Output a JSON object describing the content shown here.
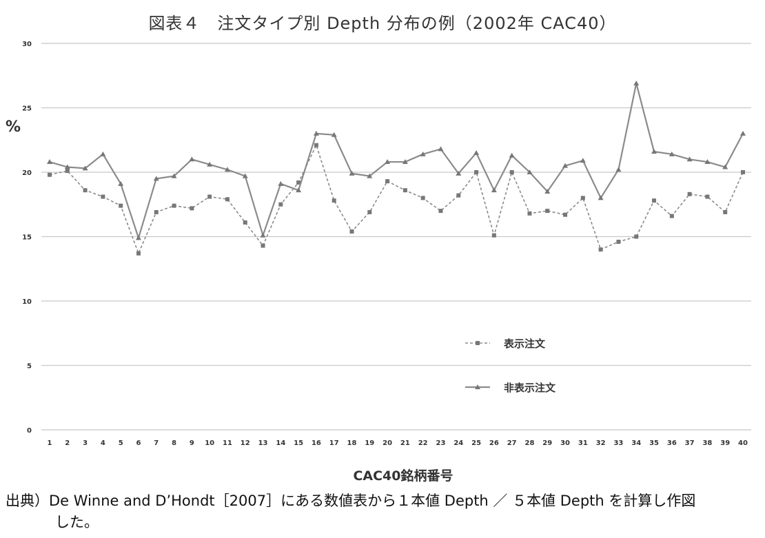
{
  "title": "図表４　注文タイプ別 Depth 分布の例（2002年 CAC40）",
  "footer": {
    "source_line1": "出典）De Winne and D’Hondt［2007］にある数値表から１本値 Depth ／ ５本値 Depth を計算し作図",
    "source_line2": "した。"
  },
  "chart_data": {
    "type": "line",
    "title": "図表４　注文タイプ別 Depth 分布の例（2002年 CAC40）",
    "xlabel": "CAC40銘柄番号",
    "ylabel": "%",
    "ylim": [
      0,
      30
    ],
    "yticks": [
      0,
      5,
      10,
      15,
      20,
      25,
      30
    ],
    "grid": true,
    "legend_position": "center-right",
    "categories": [
      "1",
      "2",
      "3",
      "4",
      "5",
      "6",
      "7",
      "8",
      "9",
      "10",
      "11",
      "12",
      "13",
      "14",
      "15",
      "16",
      "17",
      "18",
      "19",
      "20",
      "21",
      "22",
      "23",
      "24",
      "25",
      "26",
      "27",
      "28",
      "29",
      "30",
      "31",
      "32",
      "33",
      "34",
      "35",
      "36",
      "37",
      "38",
      "39",
      "40"
    ],
    "series": [
      {
        "name": "表示注文",
        "style": "dashed",
        "marker": "square",
        "color": "#8a8a8a",
        "values": [
          19.8,
          20.1,
          18.6,
          18.1,
          17.4,
          13.7,
          16.9,
          17.4,
          17.2,
          18.1,
          17.9,
          16.1,
          14.3,
          17.5,
          19.2,
          22.1,
          17.8,
          15.4,
          16.9,
          19.3,
          18.6,
          18.0,
          17.0,
          18.2,
          20.0,
          15.1,
          20.0,
          16.8,
          17.0,
          16.7,
          18.0,
          14.0,
          14.6,
          15.0,
          17.8,
          16.6,
          18.3,
          18.1,
          16.9,
          20.0
        ]
      },
      {
        "name": "非表示注文",
        "style": "solid",
        "marker": "triangle",
        "color": "#8a8a8a",
        "values": [
          20.8,
          20.4,
          20.3,
          21.4,
          19.1,
          14.9,
          19.5,
          19.7,
          21.0,
          20.6,
          20.2,
          19.7,
          15.1,
          19.1,
          18.6,
          23.0,
          22.9,
          19.9,
          19.7,
          20.8,
          20.8,
          21.4,
          21.8,
          19.9,
          21.5,
          18.6,
          21.3,
          20.0,
          18.5,
          20.5,
          20.9,
          18.0,
          20.2,
          26.9,
          21.6,
          21.4,
          21.0,
          20.8,
          20.4,
          23.0
        ]
      }
    ]
  }
}
